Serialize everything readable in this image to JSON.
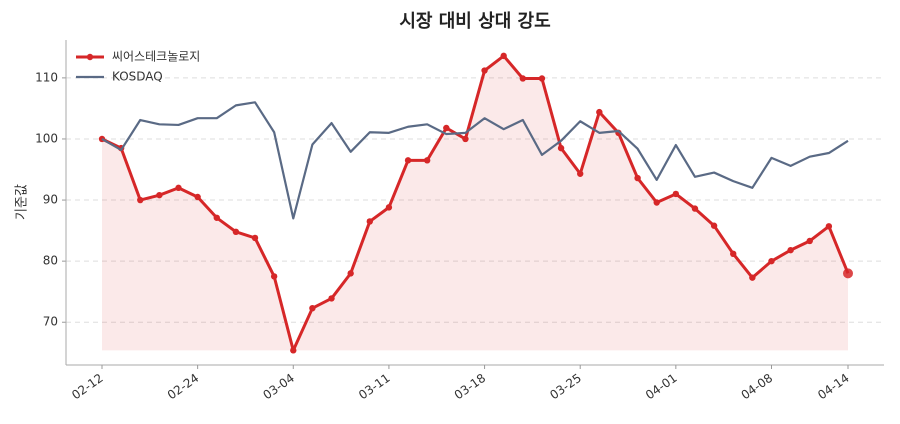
{
  "chart_data": {
    "type": "line",
    "title": "시장 대비 상대 강도",
    "y_label": "기준값",
    "categories": [
      "02-12",
      null,
      null,
      null,
      null,
      "02-24",
      null,
      null,
      null,
      null,
      "03-04",
      null,
      null,
      null,
      null,
      "03-11",
      null,
      null,
      null,
      null,
      "03-18",
      null,
      null,
      null,
      null,
      "03-25",
      null,
      null,
      null,
      null,
      "04-01",
      null,
      null,
      null,
      null,
      "04-08",
      null,
      null,
      null,
      "04-14"
    ],
    "series": [
      {
        "name": "씨어스테크놀로지",
        "color": "#d62728",
        "marker": true,
        "fill": true,
        "values": [
          100,
          98.5,
          90,
          90.8,
          92,
          90.5,
          87.1,
          84.8,
          83.8,
          77.5,
          65.4,
          72.3,
          73.9,
          78,
          86.5,
          88.8,
          96.5,
          96.5,
          101.8,
          100,
          111.2,
          113.6,
          109.9,
          109.9,
          98.5,
          94.3,
          104.4,
          101,
          93.6,
          89.6,
          91,
          88.6,
          85.8,
          81.2,
          77.3,
          80,
          81.8,
          83.3,
          85.7,
          78
        ]
      },
      {
        "name": "KOSDAQ",
        "color": "#5a6a85",
        "marker": false,
        "fill": false,
        "values": [
          100,
          98.2,
          103.1,
          102.4,
          102.3,
          103.4,
          103.4,
          105.5,
          106,
          101.1,
          87,
          99.1,
          102.6,
          97.9,
          101.1,
          101,
          102,
          102.4,
          100.8,
          101,
          103.4,
          101.6,
          103.1,
          97.4,
          99.7,
          102.9,
          101,
          101.3,
          98.4,
          93.3,
          99,
          93.8,
          94.5,
          93.1,
          92,
          96.9,
          95.6,
          97.1,
          97.7,
          99.7
        ]
      }
    ],
    "ylim": [
      63,
      116.2
    ],
    "yticks": [
      70,
      80,
      90,
      100,
      110
    ],
    "grid": true,
    "legend": "upper-left"
  }
}
